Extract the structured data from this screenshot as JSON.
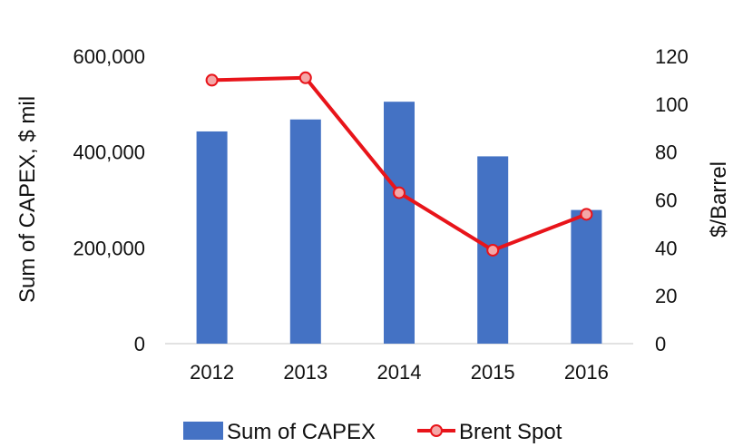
{
  "chart_data": {
    "type": "bar",
    "categories": [
      "2012",
      "2013",
      "2014",
      "2015",
      "2016"
    ],
    "series": [
      {
        "name": "Sum of CAPEX",
        "type": "bar",
        "axis": "left",
        "color": "#4472C4",
        "values": [
          443000,
          468000,
          505000,
          391000,
          279000
        ]
      },
      {
        "name": "Brent Spot",
        "type": "line",
        "axis": "right",
        "color": "#E8141A",
        "marker_fill": "#F4A7A7",
        "values": [
          110,
          111,
          63,
          39,
          54
        ]
      }
    ],
    "ylabel_left": "Sum of CAPEX, $ mil",
    "ylabel_right": "$/Barrel",
    "ylim_left": [
      0,
      600000
    ],
    "ylim_right": [
      0,
      120
    ],
    "yticks_left": [
      "0",
      "200,000",
      "400,000",
      "600,000"
    ],
    "yticks_right": [
      "0",
      "20",
      "40",
      "60",
      "80",
      "100",
      "120"
    ],
    "grid": false,
    "legend_position": "bottom"
  }
}
